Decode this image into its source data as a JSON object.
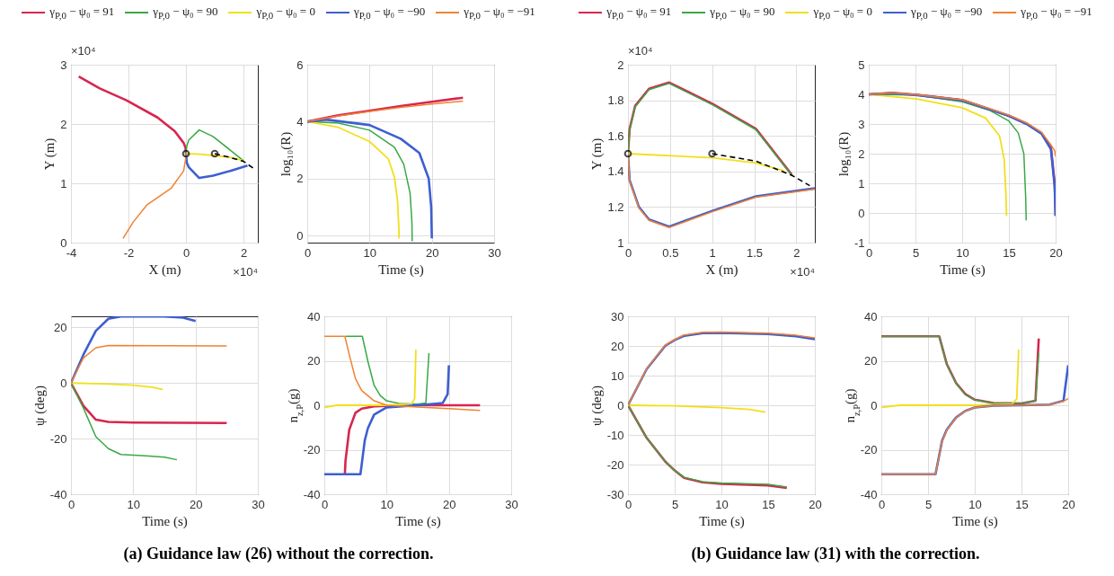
{
  "chart_data": [
    {
      "type": "line",
      "xlabel": "X (m)",
      "ylabel": "Y (m)",
      "xlim": [
        -4,
        2.5
      ],
      "xticks": [
        -4,
        -2,
        0,
        2
      ],
      "ylim": [
        0,
        3
      ],
      "yticks": [
        0,
        1,
        2,
        3
      ],
      "grid": true,
      "legend": "top",
      "annotations": [
        "×10⁴",
        "×10⁴",
        "(a) Guidance law (26) without the correction."
      ],
      "series": [
        {
          "name": "γ$_{P,0}$ − ψ₀ = 91",
          "color": "#d7264f",
          "x": [
            0,
            -0.015,
            -0.08,
            -0.39,
            -0.99,
            -2.07,
            -3,
            -3.73
          ],
          "values": [
            1.5,
            1.6,
            1.68,
            1.88,
            2.11,
            2.4,
            2.6,
            2.8
          ]
        },
        {
          "name": "γ$_{P,0}$ − ψ₀ = 90",
          "color": "#39a845",
          "x": [
            0,
            0.03,
            0.1,
            0.46,
            0.94,
            1.54,
            2
          ],
          "values": [
            1.5,
            1.63,
            1.73,
            1.9,
            1.79,
            1.56,
            1.38
          ]
        },
        {
          "name": "γ$_{P,0}$ − ψ₀ = 0",
          "color": "#f2df1c",
          "x": [
            0,
            0.5,
            0.94,
            1.5,
            1.96
          ],
          "values": [
            1.5,
            1.49,
            1.47,
            1.44,
            1.39
          ]
        },
        {
          "name": "γ$_{P,0}$ − ψ₀ = −90",
          "color": "#3d5fd0",
          "x": [
            0,
            0.03,
            0.1,
            0.46,
            0.94,
            1.54,
            2.14
          ],
          "values": [
            1.5,
            1.35,
            1.27,
            1.09,
            1.13,
            1.21,
            1.3
          ]
        },
        {
          "name": "γ$_{P,0}$ − ψ₀ = −91",
          "color": "#f08232",
          "x": [
            0,
            -0.015,
            -0.08,
            -0.51,
            -1.35,
            -1.83,
            -2.19
          ],
          "values": [
            1.5,
            1.4,
            1.21,
            0.92,
            0.64,
            0.35,
            0.07
          ]
        },
        {
          "color": "#000000",
          "line_style": "dashed",
          "x": [
            1,
            1.5,
            2,
            2.33
          ],
          "values": [
            1.5,
            1.44,
            1.37,
            1.26
          ]
        },
        {
          "type": "scatter",
          "marker": "circle",
          "color": "#000000",
          "x": [
            0,
            1
          ],
          "values": [
            1.5,
            1.5
          ]
        }
      ]
    },
    {
      "type": "line",
      "xlabel": "Time (s)",
      "ylabel": "log₁₀(R)",
      "xlim": [
        0,
        30
      ],
      "xticks": [
        0,
        10,
        20,
        30
      ],
      "ylim": [
        -0.25,
        6
      ],
      "yticks": [
        0,
        2,
        4,
        6
      ],
      "grid": true,
      "legend": "top",
      "series": [
        {
          "name": "γ$_{P,0}$ − ψ₀ = 91",
          "color": "#d7264f",
          "x": [
            0,
            5,
            10,
            15,
            20,
            25
          ],
          "values": [
            4,
            4.22,
            4.38,
            4.55,
            4.7,
            4.84
          ]
        },
        {
          "name": "γ$_{P,0}$ − ψ₀ = 90",
          "color": "#39a845",
          "x": [
            0,
            5,
            10,
            14,
            15.5,
            16.5,
            16.8,
            16.85
          ],
          "values": [
            4,
            3.95,
            3.7,
            3.1,
            2.5,
            1.5,
            0.5,
            -0.2
          ]
        },
        {
          "name": "γ$_{P,0}$ − ψ₀ = 0",
          "color": "#f2df1c",
          "x": [
            0,
            5,
            10,
            13,
            14,
            14.5,
            14.7,
            14.75
          ],
          "values": [
            4,
            3.8,
            3.3,
            2.7,
            2.05,
            1.2,
            0.3,
            -0.1
          ]
        },
        {
          "name": "γ$_{P,0}$ − ψ₀ = −90",
          "color": "#3d5fd0",
          "x": [
            0,
            3,
            10,
            15,
            18,
            19.5,
            19.9,
            20
          ],
          "values": [
            4,
            4.07,
            3.88,
            3.4,
            2.9,
            2.0,
            1.0,
            -0.1
          ]
        },
        {
          "name": "γ$_{P,0}$ − ψ₀ = −91",
          "color": "#f08232",
          "x": [
            0,
            5,
            10,
            15,
            20,
            25
          ],
          "values": [
            4,
            4.2,
            4.36,
            4.5,
            4.62,
            4.72
          ]
        }
      ]
    },
    {
      "type": "line",
      "xlabel": "Time (s)",
      "ylabel": "ψ (deg)",
      "xlim": [
        0,
        30
      ],
      "xticks": [
        0,
        10,
        20,
        30
      ],
      "ylim": [
        -40,
        24
      ],
      "yticks": [
        -40,
        -20,
        0,
        20
      ],
      "grid": true,
      "legend": "top",
      "series": [
        {
          "name": "γ$_{P,0}$ − ψ₀ = 91",
          "color": "#d7264f",
          "x": [
            0,
            2,
            4,
            6,
            10,
            25
          ],
          "values": [
            0,
            -8.2,
            -13.2,
            -14,
            -14.2,
            -14.4
          ]
        },
        {
          "name": "γ$_{P,0}$ − ψ₀ = 90",
          "color": "#39a845",
          "x": [
            0,
            2,
            4,
            6,
            8,
            12,
            15,
            17
          ],
          "values": [
            0,
            -9,
            -19.3,
            -23.6,
            -25.7,
            -26.2,
            -26.7,
            -27.6
          ]
        },
        {
          "name": "γ$_{P,0}$ − ψ₀ = 0",
          "color": "#f2df1c",
          "x": [
            0,
            5,
            10,
            13,
            14.7
          ],
          "values": [
            0,
            -0.3,
            -0.8,
            -1.5,
            -2.3
          ]
        },
        {
          "name": "γ$_{P,0}$ − ψ₀ = −90",
          "color": "#3d5fd0",
          "x": [
            0,
            2,
            4,
            6,
            8,
            15,
            18,
            20
          ],
          "values": [
            0,
            10.2,
            18.8,
            23.1,
            23.9,
            23.9,
            23.5,
            22.3
          ]
        },
        {
          "name": "γ$_{P,0}$ − ψ₀ = −91",
          "color": "#f08232",
          "x": [
            0,
            2,
            4,
            6,
            25
          ],
          "values": [
            0,
            9,
            12.7,
            13.5,
            13.3
          ]
        }
      ]
    },
    {
      "type": "line",
      "xlabel": "Time (s)",
      "ylabel": "n$_{z,P}$(g)",
      "xlim": [
        0,
        30
      ],
      "xticks": [
        0,
        10,
        20,
        30
      ],
      "ylim": [
        -40,
        40
      ],
      "yticks": [
        -40,
        -20,
        0,
        20,
        40
      ],
      "grid": true,
      "legend": "top",
      "series": [
        {
          "name": "γ$_{P,0}$ − ψ₀ = 91",
          "color": "#d7264f",
          "x": [
            3.3,
            3.4,
            4,
            5,
            6,
            8,
            10,
            15,
            25
          ],
          "values": [
            -31,
            -25,
            -11,
            -3.4,
            -1.5,
            -0.5,
            -0.3,
            0,
            0
          ]
        },
        {
          "name": "γ$_{P,0}$ − ψ₀ = 90",
          "color": "#39a845",
          "x": [
            3.4,
            6.1,
            7,
            8,
            9,
            10,
            12,
            15,
            16.3,
            16.8
          ],
          "values": [
            31,
            31,
            19.7,
            8.9,
            4.3,
            2,
            0.8,
            0.5,
            1,
            23.5
          ]
        },
        {
          "name": "γ$_{P,0}$ − ψ₀ = 0",
          "color": "#f2df1c",
          "x": [
            0,
            2,
            10,
            14,
            14.5,
            14.7
          ],
          "values": [
            -1,
            0,
            0,
            0.5,
            3,
            25
          ]
        },
        {
          "name": "γ$_{P,0}$ − ψ₀ = −90",
          "color": "#3d5fd0",
          "x": [
            0,
            5.8,
            6.5,
            7,
            8,
            10,
            15,
            19,
            19.8,
            20
          ],
          "values": [
            -31,
            -31,
            -15.7,
            -10.3,
            -4.2,
            -1,
            0,
            1,
            5,
            18
          ]
        },
        {
          "name": "γ$_{P,0}$ − ψ₀ = −91",
          "color": "#f08232",
          "x": [
            0,
            3.3,
            4,
            5,
            6,
            8,
            10,
            15,
            20,
            25
          ],
          "values": [
            31,
            31,
            22.8,
            12,
            6.6,
            2,
            0,
            -0.8,
            -1.5,
            -2.3
          ]
        }
      ]
    },
    {
      "type": "line",
      "xlabel": "X (m)",
      "ylabel": "Y (m)",
      "xlim": [
        0,
        2.22
      ],
      "xticks": [
        0,
        0.5,
        1,
        1.5,
        2
      ],
      "ylim": [
        1,
        2
      ],
      "yticks": [
        1,
        1.2,
        1.4,
        1.6,
        1.8,
        2
      ],
      "grid": true,
      "legend": "top",
      "annotations": [
        "×10⁴",
        "×10⁴",
        "(b) Guidance law (31) with the correction."
      ],
      "series": [
        {
          "name": "γ$_{P,0}$ − ψ₀ = 91",
          "color": "#d7264f",
          "x": [
            0,
            0.02,
            0.085,
            0.25,
            0.49,
            1.01,
            1.52,
            1.945
          ],
          "values": [
            1.5,
            1.64,
            1.768,
            1.865,
            1.9,
            1.778,
            1.64,
            1.382
          ]
        },
        {
          "name": "γ$_{P,0}$ − ψ₀ = 90",
          "color": "#39a845",
          "x": [
            0,
            0.02,
            0.085,
            0.25,
            0.49,
            1.01,
            1.52,
            1.945
          ],
          "values": [
            1.5,
            1.635,
            1.763,
            1.86,
            1.895,
            1.773,
            1.635,
            1.379
          ]
        },
        {
          "name": "γ$_{P,0}$ − ψ₀ = 0",
          "color": "#f2df1c",
          "x": [
            0,
            1.01,
            1.52,
            1.86
          ],
          "values": [
            1.5,
            1.477,
            1.448,
            1.402
          ]
        },
        {
          "name": "γ$_{P,0}$ − ψ₀ = −90",
          "color": "#3d5fd0",
          "x": [
            0,
            0.02,
            0.13,
            0.25,
            0.49,
            1.01,
            1.52,
            2.22
          ],
          "values": [
            1.5,
            1.35,
            1.2,
            1.13,
            1.09,
            1.18,
            1.26,
            1.305
          ]
        },
        {
          "name": "γ$_{P,0}$ − ψ₀ = −91",
          "color": "#f08232",
          "x": [
            0,
            0.02,
            0.13,
            0.25,
            0.49,
            1.01,
            1.52,
            2.22
          ],
          "values": [
            1.5,
            1.345,
            1.195,
            1.125,
            1.085,
            1.175,
            1.255,
            1.3
          ]
        },
        {
          "color": "#000000",
          "line_style": "dashed",
          "x": [
            1,
            1.52,
            1.945,
            2.16
          ],
          "values": [
            1.5,
            1.458,
            1.379,
            1.32
          ]
        },
        {
          "type": "scatter",
          "marker": "circle",
          "color": "#000000",
          "x": [
            0,
            1
          ],
          "values": [
            1.5,
            1.5
          ]
        }
      ]
    },
    {
      "type": "line",
      "xlabel": "Time (s)",
      "ylabel": "log₁₀(R)",
      "xlim": [
        0,
        20
      ],
      "xticks": [
        0,
        5,
        10,
        15,
        20
      ],
      "ylim": [
        -1,
        5
      ],
      "yticks": [
        -1,
        0,
        1,
        2,
        3,
        4,
        5
      ],
      "grid": true,
      "legend": "top",
      "series": [
        {
          "name": "γ$_{P,0}$ − ψ₀ = 91",
          "color": "#d7264f",
          "x": [
            0,
            2.5,
            5,
            10,
            15,
            17,
            18.5,
            19.5,
            19.9,
            20
          ],
          "values": [
            4,
            4.05,
            3.99,
            3.81,
            3.28,
            3.0,
            2.69,
            2.2,
            1.0,
            -0.1
          ]
        },
        {
          "name": "γ$_{P,0}$ − ψ₀ = 90",
          "color": "#39a845",
          "x": [
            0,
            5,
            10,
            13,
            15,
            16,
            16.6,
            16.8,
            16.85
          ],
          "values": [
            4,
            3.98,
            3.75,
            3.45,
            3.1,
            2.7,
            2.0,
            0.5,
            -0.25
          ]
        },
        {
          "name": "γ$_{P,0}$ − ψ₀ = 0",
          "color": "#f2df1c",
          "x": [
            0,
            5,
            10,
            12.5,
            14,
            14.5,
            14.7,
            14.75
          ],
          "values": [
            4,
            3.85,
            3.55,
            3.2,
            2.6,
            1.8,
            0.5,
            -0.1
          ]
        },
        {
          "name": "γ$_{P,0}$ − ψ₀ = −90",
          "color": "#3d5fd0",
          "x": [
            0,
            2.5,
            5,
            10,
            15,
            17,
            18.5,
            19.5,
            19.9,
            20
          ],
          "values": [
            4,
            4.04,
            3.98,
            3.8,
            3.27,
            2.98,
            2.67,
            2.15,
            0.9,
            -0.1
          ]
        },
        {
          "name": "γ$_{P,0}$ − ψ₀ = −91",
          "color": "#f08232",
          "x": [
            0,
            2.5,
            5,
            10,
            15,
            17,
            18.5,
            19.5,
            19.9,
            20
          ],
          "values": [
            4,
            4.05,
            3.99,
            3.82,
            3.3,
            3.02,
            2.72,
            2.3,
            2.1,
            1.9
          ]
        }
      ]
    },
    {
      "type": "line",
      "xlabel": "Time (s)",
      "ylabel": "ψ (deg)",
      "xlim": [
        0,
        20
      ],
      "xticks": [
        0,
        5,
        10,
        15,
        20
      ],
      "ylim": [
        -30,
        30
      ],
      "yticks": [
        -30,
        -20,
        -10,
        0,
        10,
        20,
        30
      ],
      "grid": true,
      "legend": "top",
      "series": [
        {
          "name": "γ$_{P,0}$ − ψ₀ = 91",
          "color": "#d7264f",
          "x": [
            0,
            2,
            4,
            5,
            6,
            8,
            10,
            15,
            17
          ],
          "values": [
            0,
            -11,
            -19,
            -22,
            -24.5,
            -26,
            -26.5,
            -27,
            -27.9
          ]
        },
        {
          "name": "γ$_{P,0}$ − ψ₀ = 90",
          "color": "#39a845",
          "x": [
            0,
            2,
            4,
            5,
            6,
            8,
            10,
            15,
            17
          ],
          "values": [
            0,
            -11,
            -19,
            -22,
            -24.3,
            -25.8,
            -26.2,
            -26.7,
            -27.6
          ]
        },
        {
          "name": "γ$_{P,0}$ − ψ₀ = 0",
          "color": "#f2df1c",
          "x": [
            0,
            5,
            10,
            13,
            14.7
          ],
          "values": [
            0,
            -0.2,
            -0.8,
            -1.4,
            -2.3
          ]
        },
        {
          "name": "γ$_{P,0}$ − ψ₀ = −90",
          "color": "#3d5fd0",
          "x": [
            0,
            2,
            4,
            5,
            6,
            8,
            10,
            15,
            18,
            20
          ],
          "values": [
            0,
            12.2,
            20.1,
            22,
            23.4,
            24.3,
            24.4,
            24,
            23.3,
            22.3
          ]
        },
        {
          "name": "γ$_{P,0}$ − ψ₀ = −91",
          "color": "#f08232",
          "x": [
            0,
            2,
            4,
            5,
            6,
            8,
            10,
            15,
            18,
            20
          ],
          "values": [
            0,
            12.3,
            20.3,
            22.2,
            23.7,
            24.6,
            24.7,
            24.3,
            23.6,
            22.7
          ]
        }
      ]
    },
    {
      "type": "line",
      "xlabel": "Time (s)",
      "ylabel": "n$_{z,P}$(g)",
      "xlim": [
        0,
        20
      ],
      "xticks": [
        0,
        5,
        10,
        15,
        20
      ],
      "ylim": [
        -40,
        40
      ],
      "yticks": [
        -40,
        -20,
        0,
        20,
        40
      ],
      "grid": true,
      "legend": "top",
      "series": [
        {
          "name": "γ$_{P,0}$ − ψ₀ = 91",
          "color": "#d7264f",
          "x": [
            0,
            6.2,
            7,
            8,
            9,
            10,
            12,
            15,
            16.5,
            16.85
          ],
          "values": [
            31,
            31,
            18.6,
            10,
            5,
            2.5,
            1,
            0.8,
            2,
            30
          ]
        },
        {
          "name": "γ$_{P,0}$ − ψ₀ = 90",
          "color": "#39a845",
          "x": [
            0,
            6.2,
            7,
            8,
            9,
            10,
            12,
            15,
            16.5,
            16.85
          ],
          "values": [
            31,
            31,
            18.4,
            9.8,
            4.8,
            2.4,
            1,
            0.8,
            2,
            23.5
          ]
        },
        {
          "name": "γ$_{P,0}$ − ψ₀ = 0",
          "color": "#f2df1c",
          "x": [
            0,
            2,
            10,
            14,
            14.5,
            14.7
          ],
          "values": [
            -1,
            0,
            0,
            0.5,
            3,
            25
          ]
        },
        {
          "name": "γ$_{P,0}$ − ψ₀ = −90",
          "color": "#3d5fd0",
          "x": [
            0,
            5.8,
            6.5,
            7,
            8,
            9,
            10,
            12,
            15,
            18,
            19.5,
            20
          ],
          "values": [
            -31,
            -31,
            -16,
            -11,
            -5.5,
            -2.5,
            -1,
            -0.2,
            0,
            0.3,
            2,
            18
          ]
        },
        {
          "name": "γ$_{P,0}$ − ψ₀ = −91",
          "color": "#f08232",
          "x": [
            0,
            5.8,
            6.5,
            7,
            8,
            9,
            10,
            12,
            15,
            18,
            19.5,
            20
          ],
          "values": [
            -31,
            -31,
            -16.2,
            -11.2,
            -5.6,
            -2.6,
            -1,
            -0.2,
            0,
            0.3,
            1.8,
            3
          ]
        }
      ]
    }
  ]
}
